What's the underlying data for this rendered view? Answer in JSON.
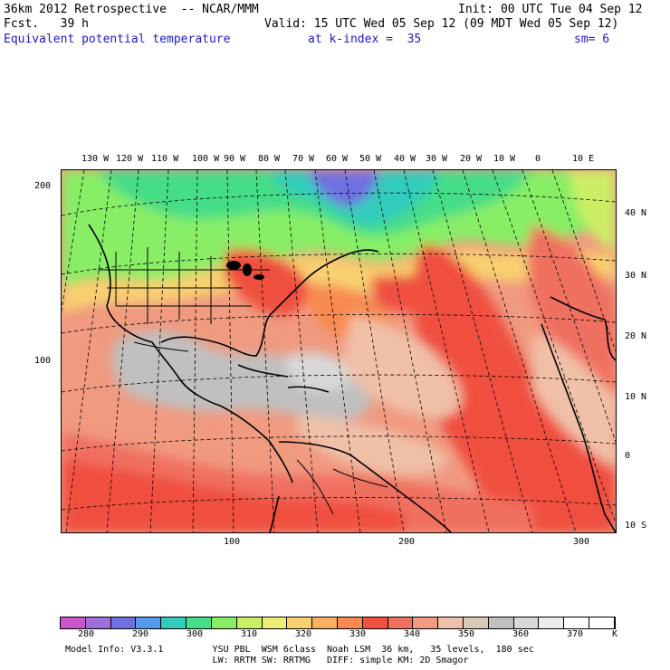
{
  "header": {
    "model": "36km 2012 Retrospective  -- NCAR/MMM",
    "init": "Init: 00 UTC Tue 04 Sep 12",
    "fcst": "Fcst.   39 h",
    "valid": "Valid: 15 UTC Wed 05 Sep 12 (09 MDT Wed 05 Sep 12)",
    "field": "Equivalent potential temperature",
    "kindex": "at k-index =  35",
    "sm": "sm= 6"
  },
  "lon_labels": [
    "130 W",
    "120 W",
    "110 W",
    "100 W",
    "90 W",
    "80 W",
    "70 W",
    "60 W",
    "50 W",
    "40 W",
    "30 W",
    "20 W",
    "10 W",
    "0",
    "10 E"
  ],
  "lat_labels": [
    "40 N",
    "30 N",
    "20 N",
    "10 N",
    "0",
    "10 S"
  ],
  "grid_y_labels": [
    "200",
    "100"
  ],
  "grid_x_labels": [
    "100",
    "200",
    "300"
  ],
  "colorbar": {
    "labels": [
      "280",
      "290",
      "300",
      "310",
      "320",
      "330",
      "340",
      "350",
      "360",
      "370"
    ],
    "unit": "K",
    "colors": [
      "#cc55cc",
      "#a070d8",
      "#7070e0",
      "#5599ee",
      "#33ccbb",
      "#44dd88",
      "#88ee66",
      "#ccee66",
      "#eeee77",
      "#f8d070",
      "#f8b060",
      "#f88a50",
      "#f05040",
      "#f07060",
      "#f09a80",
      "#f0c0a8",
      "#d8c8b8",
      "#c0c0c0",
      "#d8d8d8",
      "#ececec",
      "#ffffff",
      "#ffffff"
    ]
  },
  "footer": {
    "line1": "Model Info: V3.3.1         YSU PBL  WSM 6class  Noah LSM  36 km,   35 levels,  180 sec",
    "line2": "                           LW: RRTM SW: RRTMG   DIFF: simple KM: 2D Smagor"
  }
}
